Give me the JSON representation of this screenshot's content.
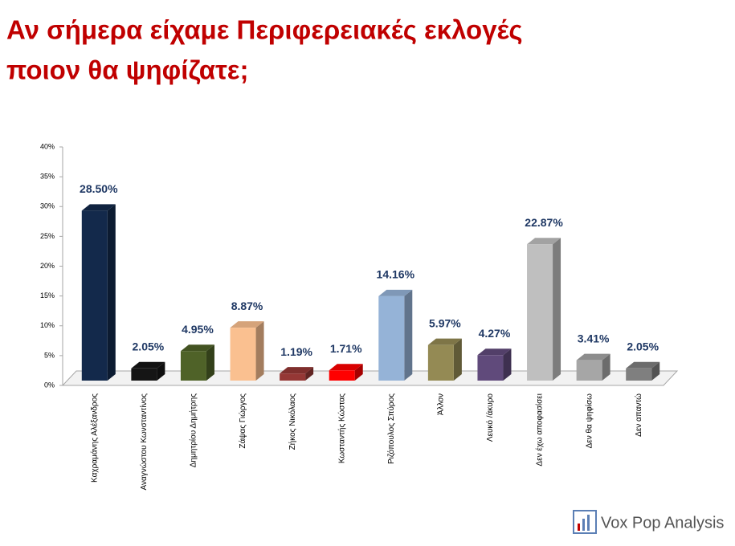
{
  "chart_data": {
    "type": "bar3d",
    "title": [
      "Αν σήμερα είχαμε Περιφερειακές εκλογές",
      "ποιον θα ψηφίζατε;"
    ],
    "categories": [
      "Καχραμάνης Αλέξανδρος",
      "Αναγνώστου Κωνσταντίνος",
      "Δημητρίου Δημήτρης",
      "Ζάψας Γιώργος",
      "Ζήκος Νικόλαος",
      "Κωσταντής Κώστας",
      "Ριζόπουλος Σπύρος",
      "Άλλον",
      "Λευκό /άκυρο",
      "Δεν έχω αποφασίσει",
      "Δεν θα ψηφίσω",
      "Δεν απαντώ"
    ],
    "values": [
      28.5,
      2.05,
      4.95,
      8.87,
      1.19,
      1.71,
      14.16,
      5.97,
      4.27,
      22.87,
      3.41,
      2.05
    ],
    "value_labels": [
      "28.50%",
      "2.05%",
      "4.95%",
      "8.87%",
      "1.19%",
      "1.71%",
      "14.16%",
      "5.97%",
      "4.27%",
      "22.87%",
      "3.41%",
      "2.05%"
    ],
    "colors": [
      "#13294b",
      "#151515",
      "#4f6228",
      "#fac090",
      "#953735",
      "#ff0000",
      "#95b3d7",
      "#948a54",
      "#604a7b",
      "#bfbfbf",
      "#a6a6a6",
      "#7f7f7f"
    ],
    "ylim": [
      0,
      40
    ],
    "yticks": [
      {
        "value": 0,
        "label": "0%"
      },
      {
        "value": 5,
        "label": "5%"
      },
      {
        "value": 10,
        "label": "10%"
      },
      {
        "value": 15,
        "label": "15%"
      },
      {
        "value": 20,
        "label": "20%"
      },
      {
        "value": 25,
        "label": "25%"
      },
      {
        "value": 30,
        "label": "30%"
      },
      {
        "value": 35,
        "label": "35%"
      },
      {
        "value": 40,
        "label": "40%"
      }
    ],
    "logo": "Vox Pop Analysis"
  }
}
